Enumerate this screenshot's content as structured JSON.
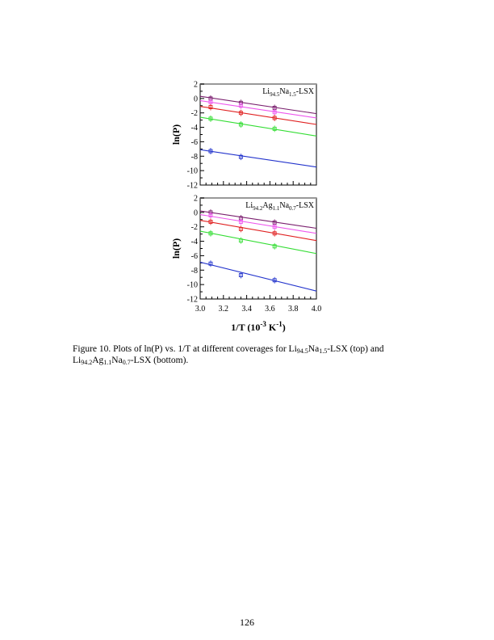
{
  "chart_data": [
    {
      "type": "line",
      "title": "Li94.5Na1.5-LSX",
      "title_main": "Li",
      "title_sub1": "94.5",
      "title_mid": "Na",
      "title_sub2": "1.5",
      "title_end": "-LSX",
      "ylabel": "ln(P)",
      "xlim": [
        3.0,
        4.0
      ],
      "ylim": [
        -12,
        2
      ],
      "yticks": [
        "2",
        "0",
        "-2",
        "-4",
        "-6",
        "-8",
        "-10",
        "-12"
      ],
      "series": [
        {
          "color": "#7a1f6e",
          "line": [
            0.3,
            -2.1
          ],
          "points_x": [
            3.09,
            3.35,
            3.64
          ],
          "points_y": [
            0.0,
            -0.6,
            -1.3
          ]
        },
        {
          "color": "#ee55ee",
          "line": [
            -0.3,
            -2.7
          ],
          "points_x": [
            3.09,
            3.35,
            3.64
          ],
          "points_y": [
            -0.5,
            -1.0,
            -1.9
          ]
        },
        {
          "color": "#e02020",
          "line": [
            -1.1,
            -3.6
          ],
          "points_x": [
            3.09,
            3.35,
            3.64
          ],
          "points_y": [
            -1.2,
            -2.0,
            -2.7
          ]
        },
        {
          "color": "#33dd33",
          "line": [
            -2.6,
            -5.2
          ],
          "points_x": [
            3.09,
            3.35,
            3.64
          ],
          "points_y": [
            -2.8,
            -3.6,
            -4.2
          ]
        },
        {
          "color": "#2233cc",
          "line": [
            -7.1,
            -9.5
          ],
          "points_x": [
            3.09,
            3.35
          ],
          "points_y": [
            -7.3,
            -8.1
          ]
        }
      ]
    },
    {
      "type": "line",
      "title": "Li94.2Ag1.1Na0.7-LSX",
      "title_main": "Li",
      "title_sub1": "94.2",
      "title_mid": "Ag",
      "title_sub2": "1.1",
      "title_mid2": "Na",
      "title_sub3": "0.7",
      "title_end": "-LSX",
      "ylabel": "ln(P)",
      "xlabel": "1/T (10-3 K-1)",
      "xlim": [
        3.0,
        4.0
      ],
      "ylim": [
        -12,
        2
      ],
      "yticks": [
        "2",
        "0",
        "-2",
        "-4",
        "-6",
        "-8",
        "-10",
        "-12"
      ],
      "xticks": [
        "3.0",
        "3.2",
        "3.4",
        "3.6",
        "3.8",
        "4.0"
      ],
      "series": [
        {
          "color": "#7a1f6e",
          "line": [
            0.2,
            -2.2
          ],
          "points_x": [
            3.09,
            3.35,
            3.64
          ],
          "points_y": [
            0.0,
            -0.8,
            -1.4
          ]
        },
        {
          "color": "#ee55ee",
          "line": [
            -0.3,
            -2.9
          ],
          "points_x": [
            3.09,
            3.35,
            3.64
          ],
          "points_y": [
            -0.4,
            -1.3,
            -2.0
          ]
        },
        {
          "color": "#e02020",
          "line": [
            -1.1,
            -3.9
          ],
          "points_x": [
            3.09,
            3.35,
            3.64
          ],
          "points_y": [
            -1.3,
            -2.3,
            -2.9
          ]
        },
        {
          "color": "#33dd33",
          "line": [
            -2.6,
            -5.7
          ],
          "points_x": [
            3.09,
            3.35,
            3.64
          ],
          "points_y": [
            -2.9,
            -3.9,
            -4.7
          ]
        },
        {
          "color": "#2233cc",
          "line": [
            -6.9,
            -10.9
          ],
          "points_x": [
            3.09,
            3.35,
            3.64
          ],
          "points_y": [
            -7.1,
            -8.7,
            -9.4
          ]
        }
      ]
    }
  ],
  "xlabel": {
    "a": "1/T (10",
    "b": "-3",
    "c": " K",
    "d": "-1",
    "e": ")"
  },
  "caption": {
    "a": "Figure 10.  Plots of ln(P) vs. 1/T at different coverages for Li",
    "b": "94.5",
    "c": "Na",
    "d": "1.5",
    "e": "-LSX (top) and Li",
    "f": "94.2",
    "g": "Ag",
    "h": "1.1",
    "i": "Na",
    "j": "0.7",
    "k": "-LSX (bottom)."
  },
  "page_number": "126"
}
